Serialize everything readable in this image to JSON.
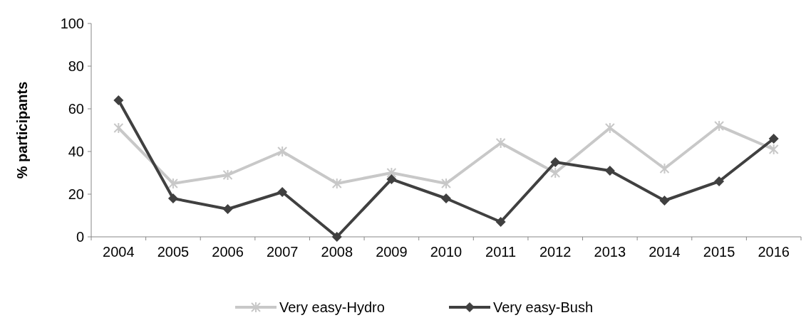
{
  "chart_data": {
    "type": "line",
    "ylabel": "% participants",
    "categories": [
      "2004",
      "2005",
      "2006",
      "2007",
      "2008",
      "2009",
      "2010",
      "2011",
      "2012",
      "2013",
      "2014",
      "2015",
      "2016"
    ],
    "series": [
      {
        "name": "Very easy-Hydro",
        "color": "#c8c8c8",
        "marker": "cross",
        "values": [
          51,
          25,
          29,
          40,
          25,
          30,
          25,
          44,
          30,
          51,
          32,
          52,
          41
        ]
      },
      {
        "name": "Very easy-Bush",
        "color": "#404040",
        "marker": "diamond",
        "values": [
          64,
          18,
          13,
          21,
          0,
          27,
          18,
          7,
          35,
          31,
          17,
          26,
          46
        ]
      }
    ],
    "ylim": [
      0,
      100
    ],
    "yticks": [
      0,
      20,
      40,
      60,
      80,
      100
    ],
    "grid": false,
    "legend": "bottom",
    "line_style": "solid"
  }
}
